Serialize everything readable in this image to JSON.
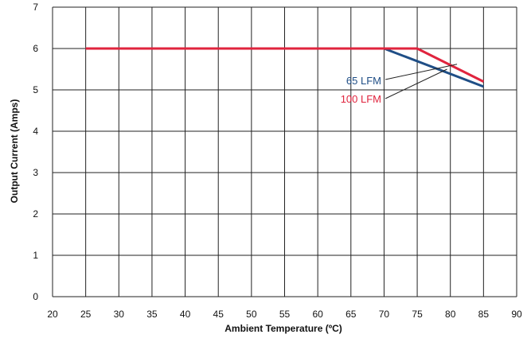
{
  "chart_data": {
    "type": "line",
    "xlabel": "Ambient Temperature (ºC)",
    "ylabel": "Output Current (Amps)",
    "xlim": [
      20,
      90
    ],
    "ylim": [
      0,
      7
    ],
    "xticks": [
      20,
      25,
      30,
      35,
      40,
      45,
      50,
      55,
      60,
      65,
      70,
      75,
      80,
      85,
      90
    ],
    "yticks": [
      0,
      1,
      2,
      3,
      4,
      5,
      6,
      7
    ],
    "grid": true,
    "series": [
      {
        "name": "65 LFM",
        "color": "#1f4e86",
        "x": [
          25,
          70,
          85
        ],
        "y": [
          6.0,
          6.0,
          5.08
        ]
      },
      {
        "name": "100 LFM",
        "color": "#e0243e",
        "x": [
          25,
          75,
          85
        ],
        "y": [
          6.0,
          6.0,
          5.2
        ]
      }
    ]
  }
}
